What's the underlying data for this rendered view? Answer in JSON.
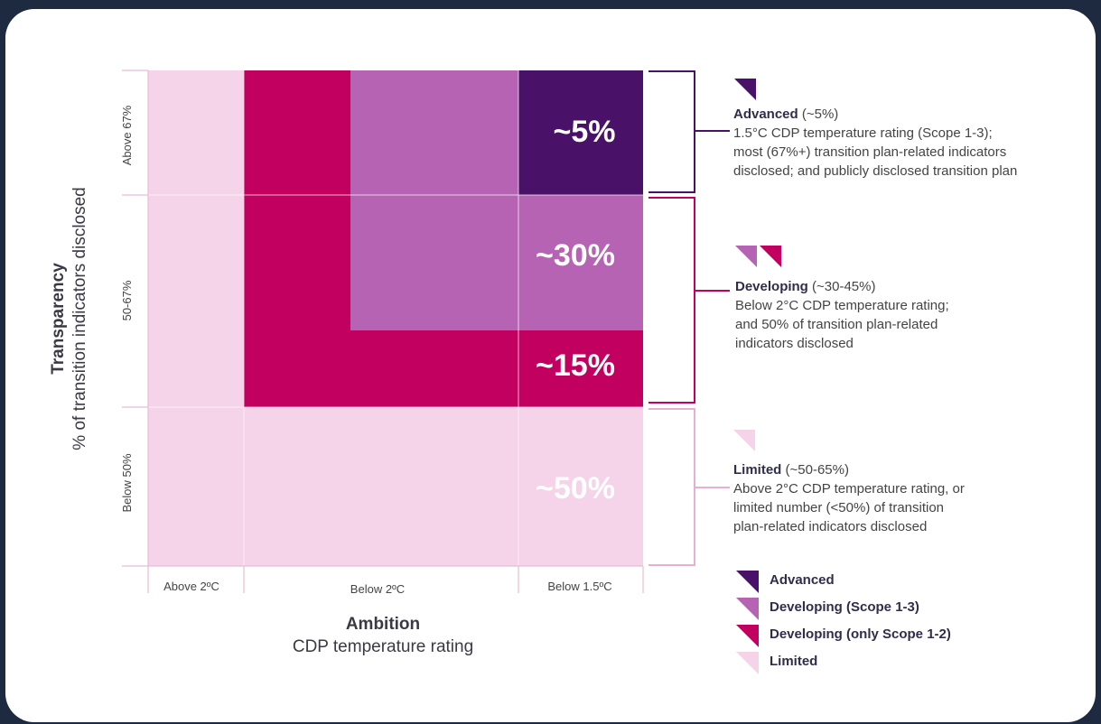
{
  "y_axis": {
    "title": "Transparency",
    "subtitle": "% of transition indicators disclosed",
    "rows": [
      "Above 67%",
      "50-67%",
      "Below 50%"
    ]
  },
  "x_axis": {
    "title": "Ambition",
    "subtitle": "CDP temperature rating",
    "columns": [
      "Above 2ºC",
      "Below 2ºC",
      "Below 1.5ºC"
    ]
  },
  "cells": [
    "~5%",
    "~30%",
    "~15%",
    "~50%"
  ],
  "groups": [
    {
      "name": "Advanced",
      "share": "(~5%)",
      "lines": [
        "1.5°C CDP temperature rating (Scope 1-3);",
        "most (67%+) transition plan-related indicators",
        "disclosed; and publicly disclosed transition plan"
      ]
    },
    {
      "name": "Developing",
      "share": "(~30-45%)",
      "lines": [
        "Below 2°C CDP temperature rating;",
        "and 50% of transition plan-related",
        "indicators disclosed"
      ]
    },
    {
      "name": "Limited",
      "share": "(~50-65%)",
      "lines": [
        "Above 2°C CDP temperature rating, or",
        "limited number (<50%) of transition",
        "plan-related indicators disclosed"
      ]
    }
  ],
  "legend": [
    "Advanced",
    "Developing (Scope 1-3)",
    "Developing (only Scope 1-2)",
    "Limited"
  ]
}
